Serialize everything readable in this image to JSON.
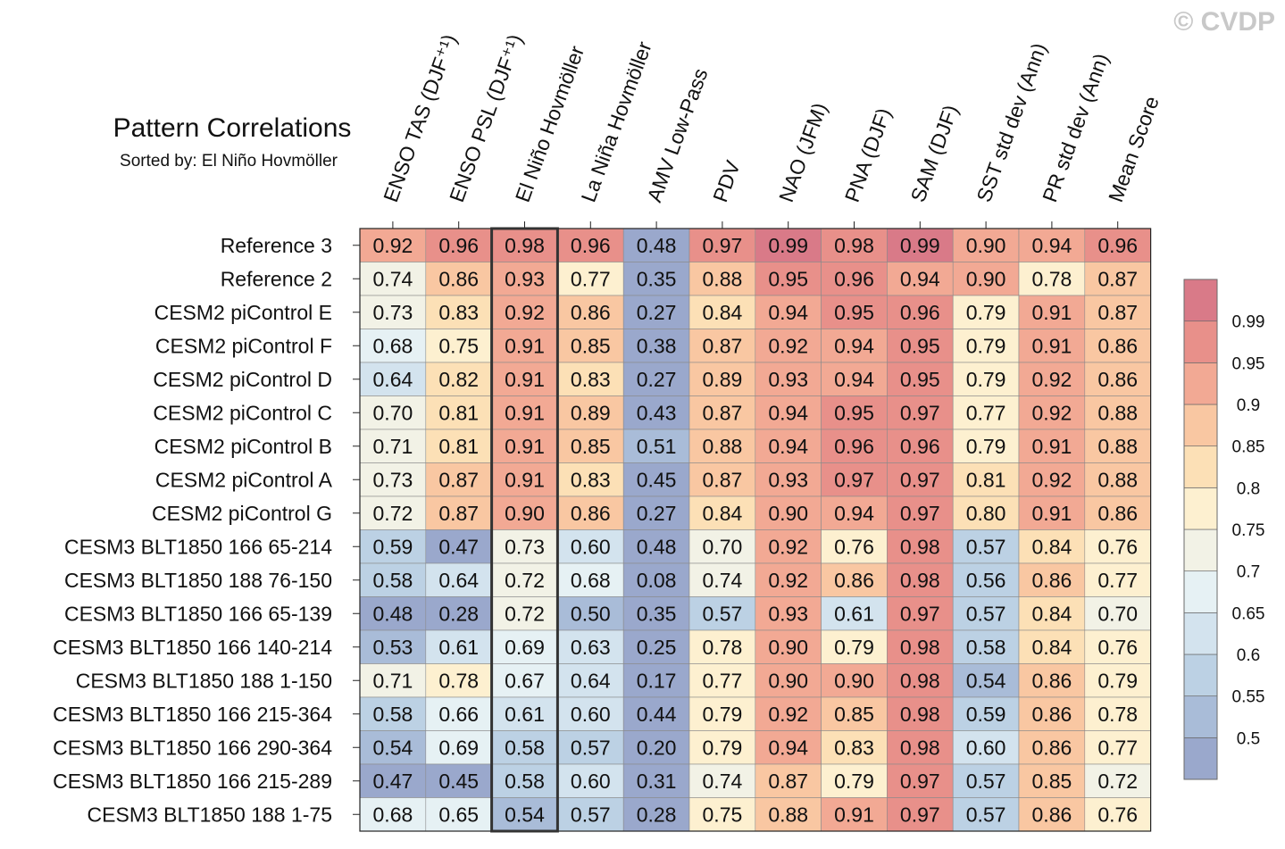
{
  "watermark": "© CVDP",
  "chart_data": {
    "type": "heatmap",
    "title": "Pattern Correlations",
    "subtitle": "Sorted by: El Niño Hovmöller",
    "columns": [
      "ENSO TAS (DJF⁺¹)",
      "ENSO PSL (DJF⁺¹)",
      "El Niño Hovmöller",
      "La Niña Hovmöller",
      "AMV Low-Pass",
      "PDV",
      "NAO (JFM)",
      "PNA (DJF)",
      "SAM (DJF)",
      "SST std dev (Ann)",
      "PR std dev (Ann)",
      "Mean Score"
    ],
    "highlighted_column": "El Niño Hovmöller",
    "rows": [
      "Reference 3",
      "Reference 2",
      "CESM2 piControl E",
      "CESM2 piControl F",
      "CESM2 piControl D",
      "CESM2 piControl C",
      "CESM2 piControl B",
      "CESM2 piControl A",
      "CESM2 piControl G",
      "CESM3 BLT1850 166 65-214",
      "CESM3 BLT1850 188 76-150",
      "CESM3 BLT1850 166 65-139",
      "CESM3 BLT1850 166 140-214",
      "CESM3 BLT1850 188 1-150",
      "CESM3 BLT1850 166 215-364",
      "CESM3 BLT1850 166 290-364",
      "CESM3 BLT1850 166 215-289",
      "CESM3 BLT1850 188 1-75"
    ],
    "values": [
      [
        "0.92",
        "0.96",
        "0.98",
        "0.96",
        "0.48",
        "0.97",
        "0.99",
        "0.98",
        "0.99",
        "0.90",
        "0.94",
        "0.96"
      ],
      [
        "0.74",
        "0.86",
        "0.93",
        "0.77",
        "0.35",
        "0.88",
        "0.95",
        "0.96",
        "0.94",
        "0.90",
        "0.78",
        "0.87"
      ],
      [
        "0.73",
        "0.83",
        "0.92",
        "0.86",
        "0.27",
        "0.84",
        "0.94",
        "0.95",
        "0.96",
        "0.79",
        "0.91",
        "0.87"
      ],
      [
        "0.68",
        "0.75",
        "0.91",
        "0.85",
        "0.38",
        "0.87",
        "0.92",
        "0.94",
        "0.95",
        "0.79",
        "0.91",
        "0.86"
      ],
      [
        "0.64",
        "0.82",
        "0.91",
        "0.83",
        "0.27",
        "0.89",
        "0.93",
        "0.94",
        "0.95",
        "0.79",
        "0.92",
        "0.86"
      ],
      [
        "0.70",
        "0.81",
        "0.91",
        "0.89",
        "0.43",
        "0.87",
        "0.94",
        "0.95",
        "0.97",
        "0.77",
        "0.92",
        "0.88"
      ],
      [
        "0.71",
        "0.81",
        "0.91",
        "0.85",
        "0.51",
        "0.88",
        "0.94",
        "0.96",
        "0.96",
        "0.79",
        "0.91",
        "0.88"
      ],
      [
        "0.73",
        "0.87",
        "0.91",
        "0.83",
        "0.45",
        "0.87",
        "0.93",
        "0.97",
        "0.97",
        "0.81",
        "0.92",
        "0.88"
      ],
      [
        "0.72",
        "0.87",
        "0.90",
        "0.86",
        "0.27",
        "0.84",
        "0.90",
        "0.94",
        "0.97",
        "0.80",
        "0.91",
        "0.86"
      ],
      [
        "0.59",
        "0.47",
        "0.73",
        "0.60",
        "0.48",
        "0.70",
        "0.92",
        "0.76",
        "0.98",
        "0.57",
        "0.84",
        "0.76"
      ],
      [
        "0.58",
        "0.64",
        "0.72",
        "0.68",
        "0.08",
        "0.74",
        "0.92",
        "0.86",
        "0.98",
        "0.56",
        "0.86",
        "0.77"
      ],
      [
        "0.48",
        "0.28",
        "0.72",
        "0.50",
        "0.35",
        "0.57",
        "0.93",
        "0.61",
        "0.97",
        "0.57",
        "0.84",
        "0.70"
      ],
      [
        "0.53",
        "0.61",
        "0.69",
        "0.63",
        "0.25",
        "0.78",
        "0.90",
        "0.79",
        "0.98",
        "0.58",
        "0.84",
        "0.76"
      ],
      [
        "0.71",
        "0.78",
        "0.67",
        "0.64",
        "0.17",
        "0.77",
        "0.90",
        "0.90",
        "0.98",
        "0.54",
        "0.86",
        "0.79"
      ],
      [
        "0.58",
        "0.66",
        "0.61",
        "0.60",
        "0.44",
        "0.79",
        "0.92",
        "0.85",
        "0.98",
        "0.59",
        "0.86",
        "0.78"
      ],
      [
        "0.54",
        "0.69",
        "0.58",
        "0.57",
        "0.20",
        "0.79",
        "0.94",
        "0.83",
        "0.98",
        "0.60",
        "0.86",
        "0.77"
      ],
      [
        "0.47",
        "0.45",
        "0.58",
        "0.60",
        "0.31",
        "0.74",
        "0.87",
        "0.79",
        "0.97",
        "0.57",
        "0.85",
        "0.72"
      ],
      [
        "0.68",
        "0.65",
        "0.54",
        "0.57",
        "0.28",
        "0.75",
        "0.88",
        "0.91",
        "0.97",
        "0.57",
        "0.86",
        "0.76"
      ]
    ],
    "colorbar": {
      "levels": [
        "0.5",
        "0.55",
        "0.6",
        "0.65",
        "0.7",
        "0.75",
        "0.8",
        "0.85",
        "0.9",
        "0.95",
        "0.99"
      ],
      "level_values": [
        0.5,
        0.55,
        0.6,
        0.65,
        0.7,
        0.75,
        0.8,
        0.85,
        0.9,
        0.95,
        0.99
      ],
      "colors": [
        "#9aa8cc",
        "#a9bcd8",
        "#bcd1e4",
        "#d3e3ee",
        "#e6f1f4",
        "#f2f2e6",
        "#fdf0d0",
        "#fce0b6",
        "#f9c7a2",
        "#f2a994",
        "#e8908a",
        "#d97a88"
      ]
    }
  }
}
